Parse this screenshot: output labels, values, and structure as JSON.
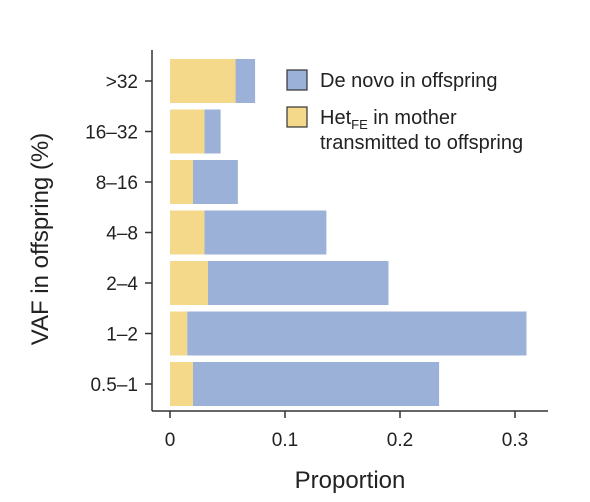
{
  "chart_data": {
    "type": "bar",
    "orientation": "horizontal",
    "stacked": true,
    "categories": [
      ">32",
      "16–32",
      "8–16",
      "4–8",
      "2–4",
      "1–2",
      "0.5–1"
    ],
    "series": [
      {
        "name": "Het_FE in mother transmitted to offspring",
        "color": "#f4d98a",
        "values": [
          0.057,
          0.03,
          0.02,
          0.03,
          0.033,
          0.015,
          0.02
        ]
      },
      {
        "name": "De novo in offspring",
        "color": "#9bb1d8",
        "values": [
          0.017,
          0.014,
          0.039,
          0.106,
          0.157,
          0.295,
          0.214
        ]
      }
    ],
    "xlabel": "Proportion",
    "ylabel": "VAF in offspring (%)",
    "xlim": [
      0,
      0.32
    ],
    "xticks": [
      "0",
      "0.1",
      "0.2",
      "0.3"
    ],
    "xtick_values": [
      0,
      0.1,
      0.2,
      0.3
    ],
    "grid": false,
    "legend": {
      "placement": "top-right",
      "entries": [
        {
          "text": "De novo in offspring",
          "color": "#9bb1d8"
        },
        {
          "base": "Het",
          "sub": "FE",
          "rest": " in mother",
          "line2": "transmitted to offspring",
          "color": "#f4d98a"
        }
      ]
    }
  }
}
